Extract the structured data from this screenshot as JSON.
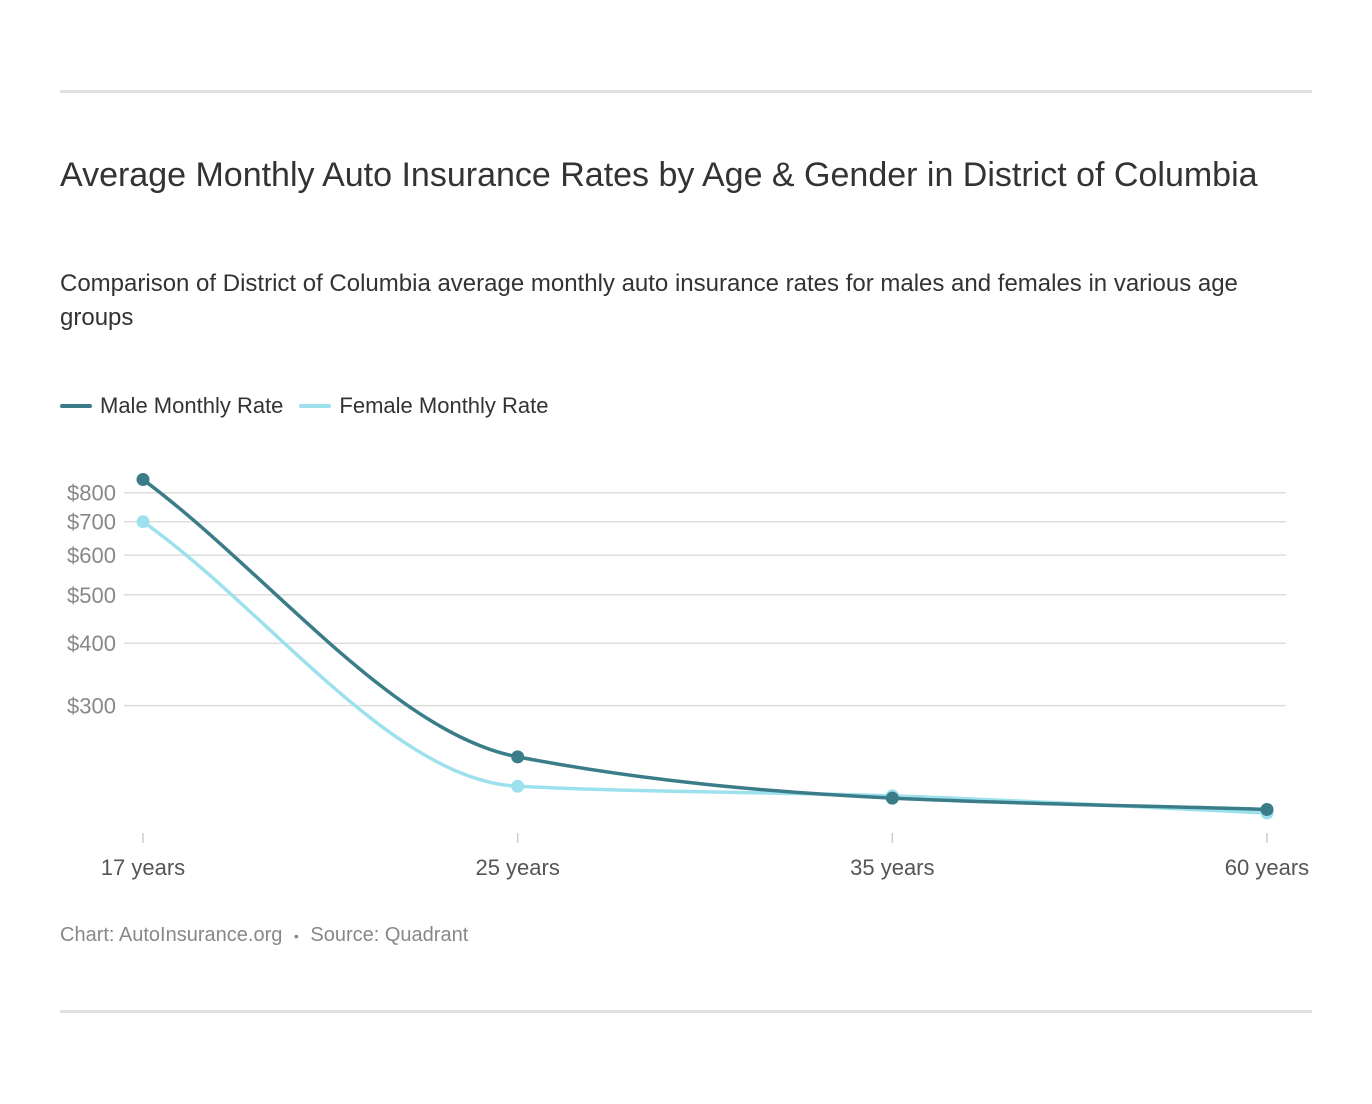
{
  "title": "Average Monthly Auto Insurance Rates by Age & Gender in District of Columbia",
  "subtitle": "Comparison of District of Columbia average monthly auto insurance rates for males and females in various age groups",
  "footer": {
    "chart_credit": "Chart: AutoInsurance.org",
    "separator": "•",
    "source": "Source: Quadrant"
  },
  "colors": {
    "male": "#3a7d89",
    "female": "#9ee1ee",
    "grid": "#dddddd",
    "tick_text": "#888888",
    "axis_text": "#555555"
  },
  "chart_data": {
    "type": "line",
    "title": "Average Monthly Auto Insurance Rates by Age & Gender in District of Columbia",
    "categories": [
      "17 years",
      "25 years",
      "35 years",
      "60 years"
    ],
    "y_scale": "log",
    "y_ticks": [
      300,
      400,
      500,
      600,
      700,
      800
    ],
    "y_tick_labels": [
      "$300",
      "$400",
      "$500",
      "$600",
      "$700",
      "$800"
    ],
    "ylim": [
      170,
      880
    ],
    "series": [
      {
        "name": "Male Monthly Rate",
        "color": "#3a7d89",
        "values": [
          850,
          237,
          196,
          186
        ]
      },
      {
        "name": "Female Monthly Rate",
        "color": "#9ee1ee",
        "values": [
          700,
          207,
          198,
          183
        ]
      }
    ],
    "legend_position": "top-left",
    "grid": true
  }
}
